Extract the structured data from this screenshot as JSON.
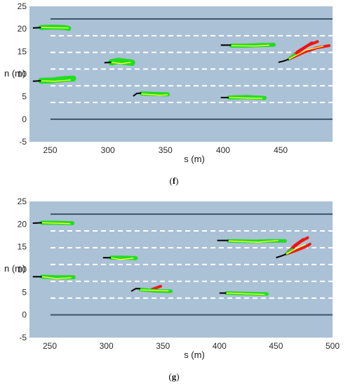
{
  "chart_data": [
    {
      "type": "scatter",
      "caption": "(f)",
      "caption_letter": "f",
      "xlabel": "s (m)",
      "ylabel": "n (m)",
      "xlim": [
        232,
        495
      ],
      "ylim": [
        -5,
        25
      ],
      "xticks": [
        "250",
        "300",
        "350",
        "400",
        "450"
      ],
      "xtick_values": [
        250,
        300,
        350,
        400,
        450
      ],
      "yticks": [
        "25",
        "20",
        "15",
        "10",
        "5",
        "0",
        "-5"
      ],
      "ytick_values": [
        25,
        20,
        15,
        10,
        5,
        0,
        -5
      ],
      "road_edges": [
        0,
        22.2
      ],
      "lane_lines": [
        3.7,
        7.4,
        11.1,
        14.8,
        18.5
      ],
      "colors": {
        "background": "#aac1d6",
        "edge": "#3b5566",
        "lane": "#ffffff",
        "history": "#000000",
        "prediction": "#22dd22",
        "truth": "#ffff33",
        "alt_prediction": "#ee1111"
      },
      "vehicles": [
        {
          "history": [
            [
              235,
              20.2
            ],
            [
              242,
              20.3
            ]
          ],
          "predicted": [
            [
              242,
              20.3
            ],
            [
              252,
              20.4
            ],
            [
              262,
              20.3
            ],
            [
              266,
              20.1
            ]
          ],
          "truth": [
            [
              242,
              20.3
            ],
            [
              266,
              20.2
            ]
          ],
          "spread": 0.55,
          "alt": []
        },
        {
          "history": [
            [
              235,
              8.4
            ],
            [
              242,
              8.5
            ]
          ],
          "predicted": [
            [
              242,
              8.5
            ],
            [
              252,
              8.6
            ],
            [
              262,
              8.9
            ],
            [
              270,
              9.0
            ]
          ],
          "truth": [
            [
              242,
              8.5
            ],
            [
              254,
              8.4
            ],
            [
              268,
              8.7
            ]
          ],
          "spread": 0.65,
          "alt": []
        },
        {
          "history": [
            [
              297,
              12.5
            ],
            [
              303,
              12.6
            ]
          ],
          "predicted": [
            [
              303,
              12.6
            ],
            [
              309,
              12.9
            ],
            [
              315,
              12.7
            ],
            [
              321,
              12.5
            ]
          ],
          "truth": [
            [
              303,
              12.6
            ],
            [
              312,
              12.3
            ],
            [
              320,
              12.6
            ]
          ],
          "spread": 0.7,
          "alt": []
        },
        {
          "history": [
            [
              322,
              5.1
            ],
            [
              325,
              5.7
            ],
            [
              329,
              5.8
            ]
          ],
          "predicted": [
            [
              329,
              5.7
            ],
            [
              340,
              5.6
            ],
            [
              352,
              5.5
            ]
          ],
          "truth": [
            [
              329,
              5.6
            ],
            [
              345,
              5.3
            ],
            [
              352,
              5.4
            ]
          ],
          "spread": 0.45,
          "alt": []
        },
        {
          "history": [
            [
              398,
              16.4
            ],
            [
              407,
              16.4
            ]
          ],
          "predicted": [
            [
              407,
              16.3
            ],
            [
              420,
              16.3
            ],
            [
              432,
              16.4
            ],
            [
              444,
              16.5
            ]
          ],
          "truth": [
            [
              407,
              16.3
            ],
            [
              428,
              16.2
            ],
            [
              440,
              16.4
            ]
          ],
          "spread": 0.45,
          "alt": []
        },
        {
          "history": [
            [
              398,
              4.8
            ],
            [
              405,
              4.8
            ]
          ],
          "predicted": [
            [
              405,
              4.8
            ],
            [
              420,
              4.9
            ],
            [
              436,
              4.7
            ]
          ],
          "truth": [
            [
              405,
              4.8
            ],
            [
              434,
              4.6
            ]
          ],
          "spread": 0.45,
          "alt": []
        },
        {
          "history": [
            [
              448,
              12.6
            ],
            [
              453,
              12.9
            ],
            [
              457,
              13.3
            ]
          ],
          "predicted": [
            [
              457,
              13.3
            ],
            [
              462,
              14.3
            ]
          ],
          "truth": [
            [
              457,
              13.3
            ],
            [
              472,
              15.3
            ],
            [
              487,
              16.2
            ]
          ],
          "spread": 0.3,
          "alt": [
            [
              [
                457,
                13.3
              ],
              [
                465,
                15.0
              ],
              [
                474,
                16.4
              ],
              [
                482,
                17.2
              ]
            ],
            [
              [
                457,
                13.3
              ],
              [
                470,
                14.8
              ],
              [
                481,
                15.8
              ],
              [
                492,
                16.3
              ]
            ],
            [
              [
                457,
                13.3
              ],
              [
                468,
                15.4
              ],
              [
                477,
                16.9
              ]
            ]
          ]
        }
      ]
    },
    {
      "type": "scatter",
      "caption": "(g)",
      "caption_letter": "g",
      "xlabel": "s (m)",
      "ylabel": "n (m)",
      "xlim": [
        232,
        500
      ],
      "ylim": [
        -5,
        25
      ],
      "xticks": [
        "250",
        "300",
        "350",
        "400",
        "450",
        "500"
      ],
      "xtick_values": [
        250,
        300,
        350,
        400,
        450,
        500
      ],
      "yticks": [
        "25",
        "20",
        "15",
        "10",
        "5",
        "0",
        "-5"
      ],
      "ytick_values": [
        25,
        20,
        15,
        10,
        5,
        0,
        -5
      ],
      "road_edges": [
        0,
        22.2
      ],
      "lane_lines": [
        3.7,
        7.4,
        11.1,
        14.8,
        18.5
      ],
      "colors": {
        "background": "#aac1d6",
        "edge": "#3b5566",
        "lane": "#ffffff",
        "history": "#000000",
        "prediction": "#22dd22",
        "truth": "#ffff33",
        "alt_prediction": "#ee1111"
      },
      "vehicles": [
        {
          "history": [
            [
              235,
              20.2
            ],
            [
              243,
              20.3
            ]
          ],
          "predicted": [
            [
              243,
              20.3
            ],
            [
              256,
              20.3
            ],
            [
              270,
              20.2
            ]
          ],
          "truth": [
            [
              243,
              20.3
            ],
            [
              268,
              20.1
            ]
          ],
          "spread": 0.45,
          "alt": []
        },
        {
          "history": [
            [
              235,
              8.4
            ],
            [
              243,
              8.4
            ]
          ],
          "predicted": [
            [
              243,
              8.4
            ],
            [
              256,
              8.3
            ],
            [
              271,
              8.3
            ]
          ],
          "truth": [
            [
              243,
              8.4
            ],
            [
              256,
              8.0
            ],
            [
              269,
              8.2
            ]
          ],
          "spread": 0.45,
          "alt": []
        },
        {
          "history": [
            [
              297,
              12.6
            ],
            [
              304,
              12.6
            ]
          ],
          "predicted": [
            [
              304,
              12.6
            ],
            [
              314,
              12.6
            ],
            [
              326,
              12.5
            ]
          ],
          "truth": [
            [
              304,
              12.6
            ],
            [
              312,
              12.2
            ],
            [
              324,
              12.5
            ]
          ],
          "spread": 0.45,
          "alt": []
        },
        {
          "history": [
            [
              322,
              5.2
            ],
            [
              326,
              5.8
            ],
            [
              330,
              5.8
            ]
          ],
          "predicted": [
            [
              330,
              5.6
            ],
            [
              343,
              5.3
            ],
            [
              357,
              5.2
            ]
          ],
          "truth": [
            [
              330,
              5.5
            ],
            [
              355,
              5.3
            ]
          ],
          "spread": 0.4,
          "alt": [
            [
              [
                340,
                5.6
              ],
              [
                348,
                6.3
              ]
            ]
          ]
        },
        {
          "history": [
            [
              398,
              16.4
            ],
            [
              408,
              16.4
            ]
          ],
          "predicted": [
            [
              408,
              16.3
            ],
            [
              430,
              16.2
            ],
            [
              448,
              16.3
            ],
            [
              458,
              16.3
            ]
          ],
          "truth": [
            [
              408,
              16.3
            ],
            [
              434,
              16.0
            ],
            [
              452,
              16.4
            ]
          ],
          "spread": 0.4,
          "alt": []
        },
        {
          "history": [
            [
              400,
              4.8
            ],
            [
              406,
              4.8
            ]
          ],
          "predicted": [
            [
              406,
              4.8
            ],
            [
              424,
              4.7
            ],
            [
              442,
              4.6
            ]
          ],
          "truth": [
            [
              406,
              4.8
            ],
            [
              440,
              4.5
            ]
          ],
          "spread": 0.4,
          "alt": []
        },
        {
          "history": [
            [
              450,
              12.6
            ],
            [
              455,
              13.0
            ],
            [
              459,
              13.4
            ]
          ],
          "predicted": [
            [
              459,
              13.4
            ],
            [
              464,
              14.4
            ]
          ],
          "truth": [
            [
              459,
              13.4
            ],
            [
              468,
              14.6
            ],
            [
              476,
              15.6
            ]
          ],
          "spread": 0.3,
          "alt": [
            [
              [
                459,
                13.4
              ],
              [
                466,
                15.0
              ],
              [
                472,
                16.2
              ],
              [
                478,
                17.0
              ]
            ],
            [
              [
                459,
                13.4
              ],
              [
                468,
                14.2
              ],
              [
                476,
                15.0
              ],
              [
                480,
                15.6
              ]
            ],
            [
              [
                459,
                13.4
              ],
              [
                467,
                15.4
              ],
              [
                474,
                16.6
              ]
            ]
          ]
        }
      ]
    }
  ]
}
